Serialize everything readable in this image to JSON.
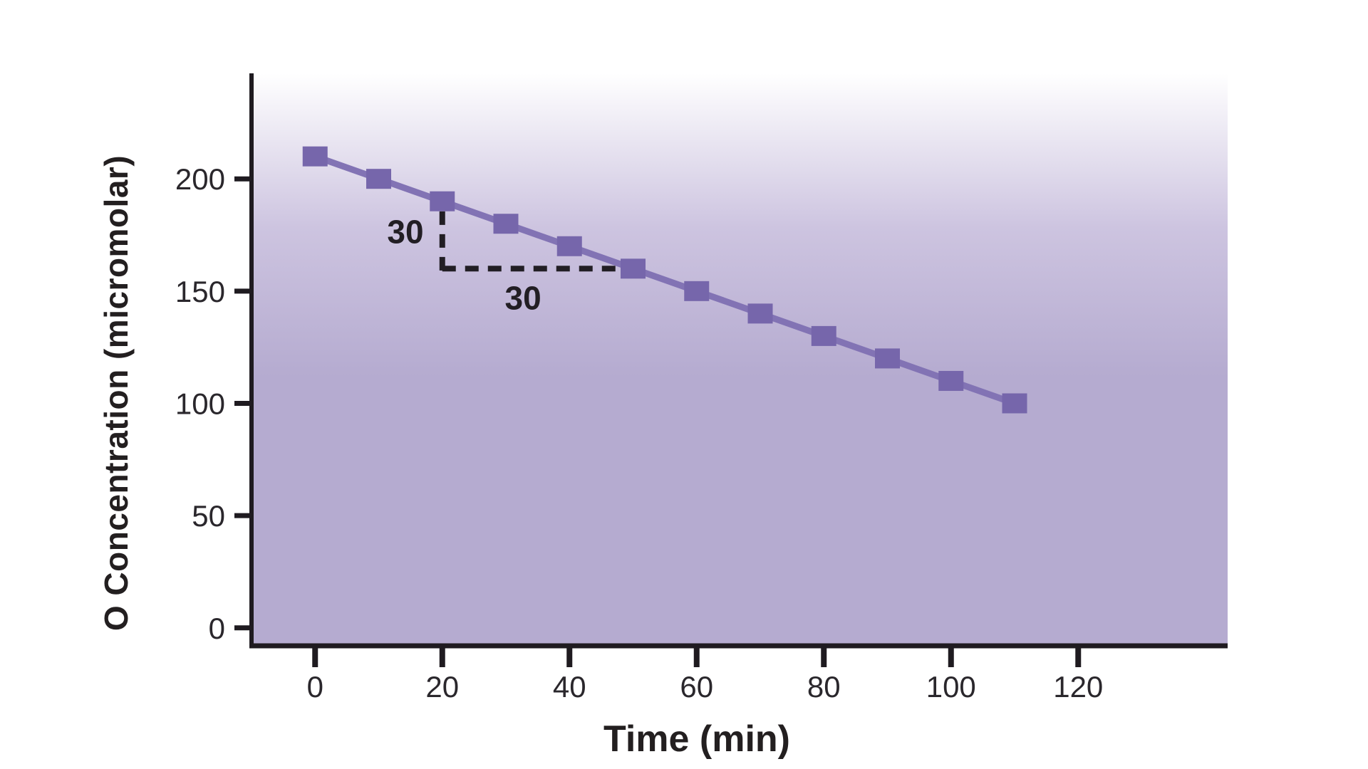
{
  "chart_data": {
    "type": "line",
    "title": "",
    "xlabel": "Time (min)",
    "ylabel": "O Concentration (micromolar)",
    "x": [
      0,
      10,
      20,
      30,
      40,
      50,
      60,
      70,
      80,
      90,
      100,
      110
    ],
    "series": [
      {
        "name": "O concentration",
        "values": [
          210,
          200,
          190,
          180,
          170,
          160,
          150,
          140,
          130,
          120,
          110,
          100
        ]
      }
    ],
    "xticks": [
      0,
      20,
      40,
      60,
      80,
      100,
      120
    ],
    "yticks": [
      0,
      50,
      100,
      150,
      200
    ],
    "xlim": [
      -10,
      143.5
    ],
    "ylim": [
      -8,
      247
    ],
    "grid": false,
    "legend": "none",
    "marker_shape": "square",
    "slope": -1,
    "annotations": [
      {
        "id": "slope-rise",
        "kind": "dashed-vline",
        "label": "30",
        "x": 20,
        "y1": 185.5,
        "y2": 158.8,
        "label_x": 14.2,
        "label_y": 176.5
      },
      {
        "id": "slope-run",
        "kind": "dashed-hline",
        "label": "30",
        "y": 160,
        "x1": 20,
        "x2": 48.3,
        "label_x": 32.7,
        "label_y": 147
      }
    ],
    "colors": {
      "line": "#8273b4",
      "marker": "#7666ab",
      "axis": "#1f1b20",
      "tick_text": "#2a272c",
      "title_text": "#231f20",
      "annotation": "#221e24",
      "plot_bg_top": "#ffffff",
      "plot_bg_mid": "#cdc4e0",
      "plot_bg_bottom": "#b5abd0"
    }
  }
}
